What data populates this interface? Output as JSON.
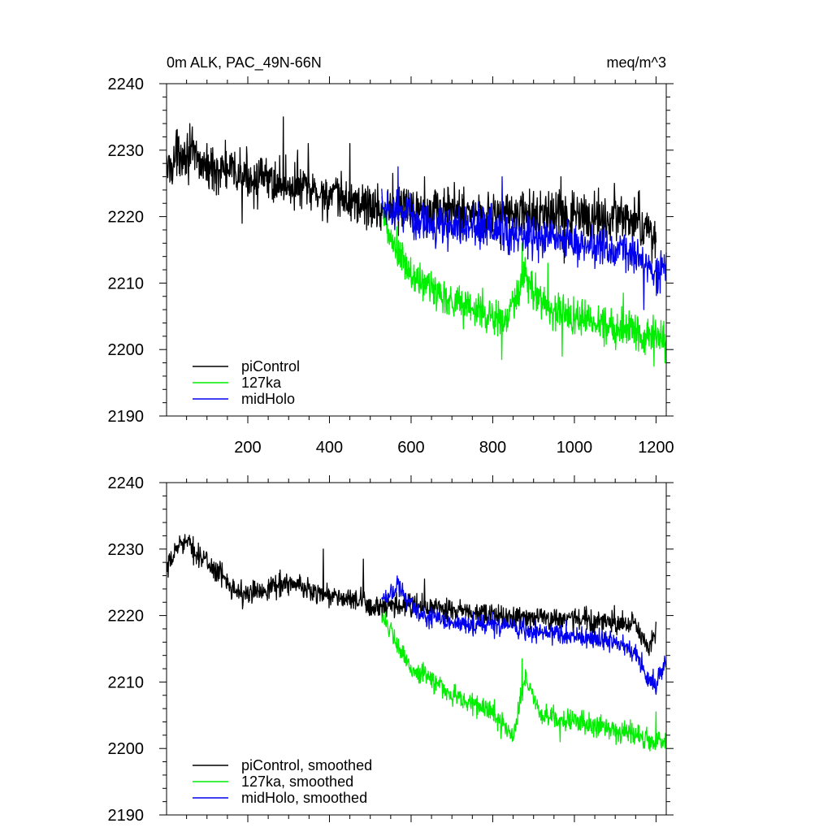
{
  "chart_data": [
    {
      "type": "line",
      "title_left": "0m ALK, PAC_49N-66N",
      "title_right": "meq/m^3",
      "xlim": [
        1,
        1225
      ],
      "ylim": [
        2190,
        2240
      ],
      "x_ticks": [
        200,
        400,
        600,
        800,
        1000,
        1200
      ],
      "x_tick_labels": [
        "200",
        "400",
        "600",
        "800",
        "1000",
        "1200"
      ],
      "y_ticks": [
        2190,
        2200,
        2210,
        2220,
        2230,
        2240
      ],
      "y_tick_labels": [
        "2190",
        "2200",
        "2210",
        "2220",
        "2230",
        "2240"
      ],
      "grid": false,
      "legend_position": "bottom-left",
      "series": [
        {
          "name": "piControl",
          "color": "#000000",
          "x_start": 1,
          "x_end": 1200,
          "knots": [
            [
              1,
              2227
            ],
            [
              40,
              2230
            ],
            [
              100,
              2227.5
            ],
            [
              200,
              2226
            ],
            [
              290,
              2225
            ],
            [
              400,
              2223
            ],
            [
              480,
              2222
            ],
            [
              520,
              2221
            ],
            [
              600,
              2221.5
            ],
            [
              800,
              2220.5
            ],
            [
              1000,
              2220
            ],
            [
              1150,
              2219.5
            ],
            [
              1200,
              2217
            ]
          ],
          "noise": 3.0,
          "spikes": [
            [
              25,
              2233
            ],
            [
              58,
              2234
            ],
            [
              100,
              2231
            ],
            [
              145,
              2231.5
            ],
            [
              186,
              2219
            ],
            [
              287,
              2235
            ],
            [
              322,
              2230
            ],
            [
              348,
              2231
            ],
            [
              450,
              2231
            ],
            [
              555,
              2226.5
            ],
            [
              633,
              2226
            ],
            [
              820,
              2215
            ],
            [
              967,
              2226
            ],
            [
              975,
              2213
            ],
            [
              1098,
              2225
            ],
            [
              1190,
              2213
            ]
          ]
        },
        {
          "name": "127ka",
          "color": "#00ee00",
          "x_start": 528,
          "x_end": 1225,
          "knots": [
            [
              528,
              2221
            ],
            [
              545,
              2217
            ],
            [
              600,
              2211
            ],
            [
              700,
              2207.5
            ],
            [
              800,
              2205
            ],
            [
              830,
              2204
            ],
            [
              880,
              2210.5
            ],
            [
              940,
              2206
            ],
            [
              1000,
              2205
            ],
            [
              1100,
              2203.5
            ],
            [
              1150,
              2203
            ],
            [
              1225,
              2201.5
            ]
          ],
          "noise": 2.6,
          "spikes": [
            [
              822,
              2198.5
            ],
            [
              872,
              2216
            ],
            [
              935,
              2213
            ],
            [
              970,
              2199
            ],
            [
              1120,
              2208.5
            ],
            [
              1195,
              2197.5
            ],
            [
              1222,
              2198
            ]
          ]
        },
        {
          "name": "midHolo",
          "color": "#0000ee",
          "x_start": 528,
          "x_end": 1225,
          "knots": [
            [
              528,
              2222
            ],
            [
              580,
              2220.5
            ],
            [
              620,
              2219
            ],
            [
              700,
              2218.5
            ],
            [
              800,
              2218
            ],
            [
              900,
              2217
            ],
            [
              1000,
              2216
            ],
            [
              1100,
              2215
            ],
            [
              1160,
              2214
            ],
            [
              1200,
              2211
            ],
            [
              1225,
              2212.5
            ]
          ],
          "noise": 2.6,
          "spikes": [
            [
              568,
              2227.5
            ],
            [
              823,
              2226
            ],
            [
              1170,
              2206
            ],
            [
              1210,
              2208.5
            ]
          ]
        }
      ]
    },
    {
      "type": "line",
      "xlim": [
        1,
        1225
      ],
      "ylim": [
        2190,
        2240
      ],
      "x_ticks": [
        200,
        400,
        600,
        800,
        1000,
        1200
      ],
      "y_ticks": [
        2190,
        2200,
        2210,
        2220,
        2230,
        2240
      ],
      "y_tick_labels": [
        "2190",
        "2200",
        "2210",
        "2220",
        "2230",
        "2240"
      ],
      "grid": false,
      "legend_position": "bottom-left",
      "series": [
        {
          "name": "piControl, smoothed",
          "color": "#000000",
          "x_start": 1,
          "x_end": 1200,
          "knots": [
            [
              1,
              2226.5
            ],
            [
              25,
              2230
            ],
            [
              40,
              2231.5
            ],
            [
              100,
              2228
            ],
            [
              190,
              2223
            ],
            [
              290,
              2225
            ],
            [
              400,
              2223
            ],
            [
              480,
              2222
            ],
            [
              520,
              2221
            ],
            [
              600,
              2221.5
            ],
            [
              800,
              2220
            ],
            [
              1000,
              2219.5
            ],
            [
              1150,
              2218.5
            ],
            [
              1180,
              2215
            ],
            [
              1200,
              2217.5
            ]
          ],
          "noise": 1.5,
          "spikes": [
            [
              43,
              2231.5
            ],
            [
              187,
              2221
            ],
            [
              385,
              2230
            ],
            [
              483,
              2228.5
            ],
            [
              633,
              2225.5
            ],
            [
              1098,
              2221.5
            ],
            [
              1183,
              2214
            ]
          ]
        },
        {
          "name": "127ka, smoothed",
          "color": "#00ee00",
          "x_start": 528,
          "x_end": 1225,
          "knots": [
            [
              528,
              2220.5
            ],
            [
              560,
              2216
            ],
            [
              600,
              2212
            ],
            [
              660,
              2210
            ],
            [
              700,
              2208
            ],
            [
              800,
              2205.5
            ],
            [
              850,
              2202
            ],
            [
              880,
              2210.5
            ],
            [
              920,
              2205
            ],
            [
              1000,
              2204
            ],
            [
              1100,
              2203
            ],
            [
              1200,
              2201
            ],
            [
              1225,
              2201.5
            ]
          ],
          "noise": 1.4,
          "spikes": [
            [
              820,
              2201.5
            ],
            [
              872,
              2213.5
            ],
            [
              965,
              2201
            ],
            [
              1200,
              2205.5
            ]
          ]
        },
        {
          "name": "midHolo, smoothed",
          "color": "#0000ee",
          "x_start": 528,
          "x_end": 1225,
          "knots": [
            [
              528,
              2222.5
            ],
            [
              568,
              2224.5
            ],
            [
              620,
              2220
            ],
            [
              700,
              2219
            ],
            [
              800,
              2218.5
            ],
            [
              900,
              2217.5
            ],
            [
              1000,
              2217
            ],
            [
              1100,
              2216
            ],
            [
              1150,
              2214.5
            ],
            [
              1180,
              2210.5
            ],
            [
              1200,
              2210
            ],
            [
              1225,
              2213
            ]
          ],
          "noise": 1.3,
          "spikes": [
            [
              570,
              2225
            ],
            [
              823,
              2218
            ],
            [
              1188,
              2209.5
            ]
          ]
        }
      ]
    }
  ]
}
